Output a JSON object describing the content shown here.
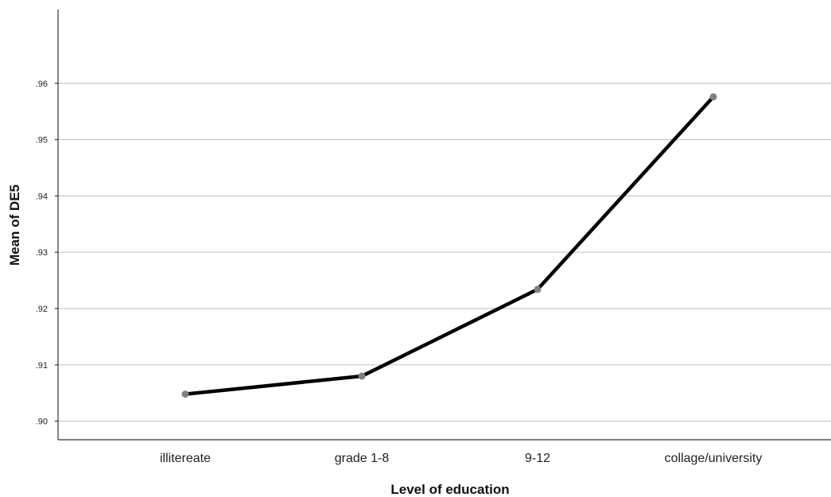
{
  "chart_data": {
    "type": "line",
    "title": "",
    "xlabel": "Level of education",
    "ylabel": "Mean of DE5",
    "categories": [
      "illitereate",
      "grade 1-8",
      "9-12",
      "collage/university"
    ],
    "series": [
      {
        "values": [
          0.9048,
          0.908,
          0.9234,
          0.9576
        ]
      }
    ],
    "ylim": [
      0.8967,
      0.9731
    ],
    "yticks": [
      {
        "value": 0.9,
        "label": ".90"
      },
      {
        "value": 0.91,
        "label": ".91"
      },
      {
        "value": 0.92,
        "label": ".92"
      },
      {
        "value": 0.93,
        "label": ".93"
      },
      {
        "value": 0.94,
        "label": ".94"
      },
      {
        "value": 0.95,
        "label": ".95"
      },
      {
        "value": 0.96,
        "label": ".96"
      }
    ],
    "grid": true,
    "line_color": "#000000",
    "marker_color": "#808080",
    "grid_color": "#c8c8c8"
  }
}
